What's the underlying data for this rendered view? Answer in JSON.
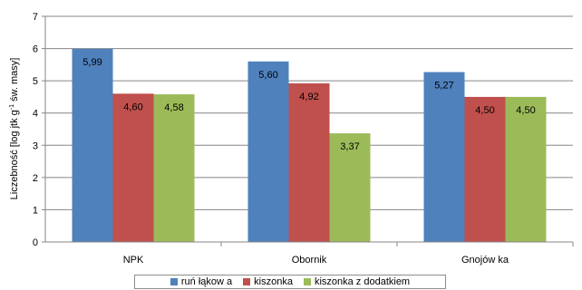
{
  "chart_data": {
    "type": "bar",
    "categories": [
      "NPK",
      "Obornik",
      "Gnojów ka"
    ],
    "series": [
      {
        "name": "ruń łąkow a",
        "values": [
          5.99,
          5.6,
          5.27
        ],
        "labels": [
          "5,99",
          "5,60",
          "5,27"
        ],
        "color": "#4f81bd"
      },
      {
        "name": "kiszonka",
        "values": [
          4.6,
          4.92,
          4.5
        ],
        "labels": [
          "4,60",
          "4,92",
          "4,50"
        ],
        "color": "#c0504d"
      },
      {
        "name": "kiszonka z dodatkiem",
        "values": [
          4.58,
          3.37,
          4.5
        ],
        "labels": [
          "4,58",
          "3,37",
          "4,50"
        ],
        "color": "#9bbb59"
      }
    ],
    "ylabel": "Liczebność [log jtk g⁻¹ św. masy]",
    "ylim": [
      0,
      7
    ],
    "yticks": [
      "0",
      "1",
      "2",
      "3",
      "4",
      "5",
      "6",
      "7"
    ],
    "grid": true,
    "legend_position": "bottom"
  }
}
